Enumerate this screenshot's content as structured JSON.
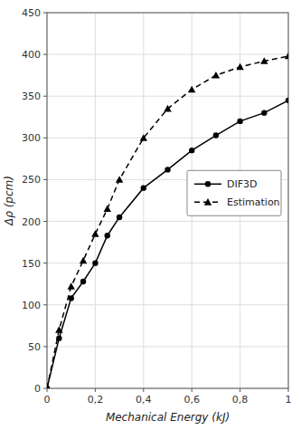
{
  "chart_data": {
    "type": "line",
    "x": [
      0,
      0.05,
      0.1,
      0.15,
      0.2,
      0.25,
      0.3,
      0.4,
      0.5,
      0.6,
      0.7,
      0.8,
      0.9,
      1.0
    ],
    "series": [
      {
        "name": "DIF3D",
        "color": "#000000",
        "marker": "circle",
        "line_style": "solid",
        "values": [
          0,
          60,
          108,
          128,
          150,
          183,
          205,
          240,
          262,
          285,
          303,
          320,
          330,
          345
        ]
      },
      {
        "name": "Estimation",
        "color": "#000000",
        "marker": "triangle",
        "line_style": "dashed",
        "values": [
          0,
          70,
          122,
          153,
          185,
          215,
          250,
          300,
          335,
          358,
          375,
          385,
          392,
          398
        ]
      }
    ],
    "x_label": "Mechanical Energy (kJ)",
    "y_label": "Δρ (pcm)",
    "xlim": [
      0,
      1.0
    ],
    "ylim": [
      0,
      450
    ],
    "xticks": [
      0,
      {
        "value": 0.2,
        "label": "0,2"
      },
      {
        "value": 0.4,
        "label": "0,4"
      },
      {
        "value": 0.6,
        "label": "0,6"
      },
      {
        "value": 0.8,
        "label": "0,8"
      },
      1
    ],
    "yticks": [
      0,
      50,
      100,
      150,
      200,
      250,
      300,
      350,
      400,
      450
    ],
    "grid": true,
    "legend": "right"
  }
}
